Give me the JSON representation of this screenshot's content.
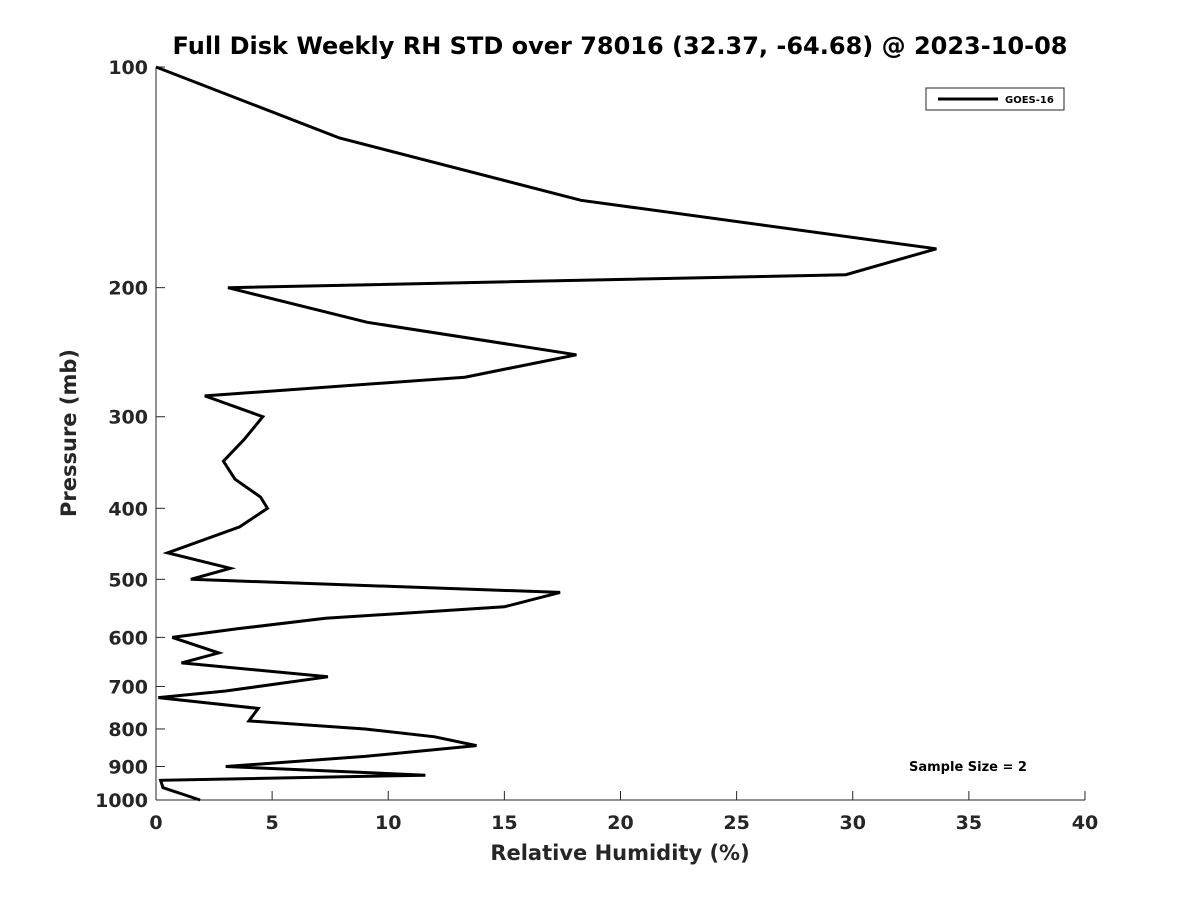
{
  "chart_data": {
    "type": "line",
    "title": "Full Disk Weekly RH STD over 78016 (32.37, -64.68) @ 2023-10-08",
    "xlabel": "Relative Humidity (%)",
    "ylabel": "Pressure (mb)",
    "xlim": [
      0,
      40
    ],
    "ylim": [
      100,
      1000
    ],
    "y_scale": "log",
    "y_reversed": true,
    "x_ticks": [
      "0",
      "5",
      "10",
      "15",
      "20",
      "25",
      "30",
      "35",
      "40"
    ],
    "y_ticks": [
      "100",
      "200",
      "300",
      "400",
      "500",
      "600",
      "700",
      "800",
      "900",
      "1000"
    ],
    "grid": false,
    "legend": {
      "position": "top-right",
      "entries": [
        "GOES-16"
      ]
    },
    "annotation": "Sample Size = 2",
    "series": [
      {
        "name": "GOES-16",
        "color": "#000000",
        "points": [
          [
            0.0,
            100
          ],
          [
            7.9,
            125
          ],
          [
            18.3,
            152
          ],
          [
            33.6,
            177
          ],
          [
            29.7,
            192
          ],
          [
            3.1,
            200
          ],
          [
            9.1,
            223
          ],
          [
            18.1,
            247
          ],
          [
            13.3,
            265
          ],
          [
            2.1,
            281
          ],
          [
            4.6,
            300
          ],
          [
            3.8,
            322
          ],
          [
            2.9,
            345
          ],
          [
            3.4,
            365
          ],
          [
            4.5,
            386
          ],
          [
            4.8,
            400
          ],
          [
            3.6,
            424
          ],
          [
            0.5,
            460
          ],
          [
            3.2,
            483
          ],
          [
            1.5,
            500
          ],
          [
            17.4,
            521
          ],
          [
            15.0,
            545
          ],
          [
            7.3,
            565
          ],
          [
            3.5,
            584
          ],
          [
            0.7,
            600
          ],
          [
            2.7,
            630
          ],
          [
            1.1,
            650
          ],
          [
            7.4,
            679
          ],
          [
            3.0,
            710
          ],
          [
            0.1,
            725
          ],
          [
            4.4,
            750
          ],
          [
            4.0,
            780
          ],
          [
            9.0,
            800
          ],
          [
            12.0,
            820
          ],
          [
            13.8,
            843
          ],
          [
            9.0,
            872
          ],
          [
            3.0,
            900
          ],
          [
            11.6,
            925
          ],
          [
            0.2,
            940
          ],
          [
            0.3,
            962
          ],
          [
            1.9,
            1000
          ]
        ]
      }
    ]
  }
}
